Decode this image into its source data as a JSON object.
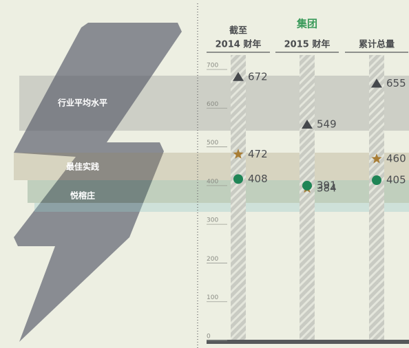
{
  "chart_data": {
    "type": "dot",
    "title": "集团",
    "categories": [
      [
        "截至",
        "2014 财年"
      ],
      [
        "2015 财年"
      ],
      [
        "累计总量"
      ]
    ],
    "series": [
      {
        "name": "行业平均水平",
        "color": "#45484c",
        "marker": "triangle",
        "values": [
          672,
          549,
          655
        ]
      },
      {
        "name": "最佳实践",
        "color": "#a87d35",
        "marker": "star",
        "values": [
          472,
          384,
          460
        ]
      },
      {
        "name": "悦榕庄",
        "color": "#1f8556",
        "marker": "circle",
        "values": [
          408,
          391,
          405
        ]
      }
    ],
    "ylim": [
      0,
      700
    ],
    "yticks": [
      0,
      100,
      200,
      300,
      400,
      500,
      600,
      700
    ]
  }
}
